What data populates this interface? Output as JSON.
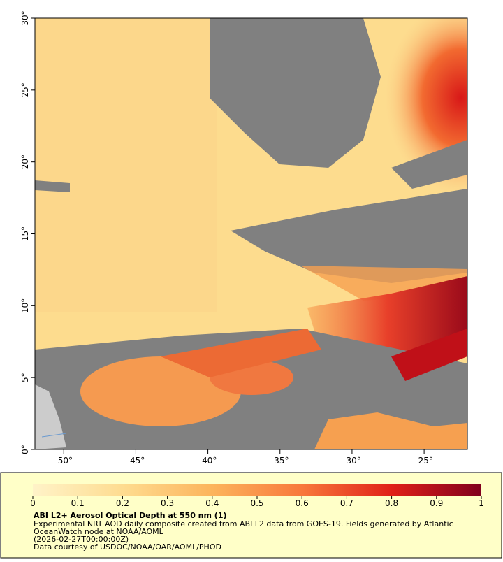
{
  "map": {
    "xlim": [
      -52,
      -22
    ],
    "ylim": [
      0,
      30
    ],
    "xticks": [
      {
        "value": -50,
        "label": "-50°"
      },
      {
        "value": -45,
        "label": "-45°"
      },
      {
        "value": -40,
        "label": "-40°"
      },
      {
        "value": -35,
        "label": "-35°"
      },
      {
        "value": -30,
        "label": "-30°"
      },
      {
        "value": -25,
        "label": "-25°"
      }
    ],
    "yticks": [
      {
        "value": 0,
        "label": "0°"
      },
      {
        "value": 5,
        "label": "5°"
      },
      {
        "value": 10,
        "label": "10°"
      },
      {
        "value": 15,
        "label": "15°"
      },
      {
        "value": 20,
        "label": "20°"
      },
      {
        "value": 25,
        "label": "25°"
      },
      {
        "value": 30,
        "label": "30°"
      }
    ]
  },
  "colorbar": {
    "lim": [
      0,
      1
    ],
    "ticks": [
      0,
      0.1,
      0.2,
      0.3,
      0.4,
      0.5,
      0.6,
      0.7,
      0.8,
      0.9,
      1
    ]
  },
  "caption": {
    "title": "ABI L2+ Aerosol Optical Depth at 550 nm (1)",
    "lines": [
      "Experimental NRT AOD daily composite created from ABI L2 data from GOES-19. Fields generated by Atlantic",
      "OceanWatch node at NOAA/AOML",
      "(2026-02-27T00:00:00Z)",
      "Data courtesy of USDOC/NOAA/OAR/AOML/PHOD"
    ]
  }
}
